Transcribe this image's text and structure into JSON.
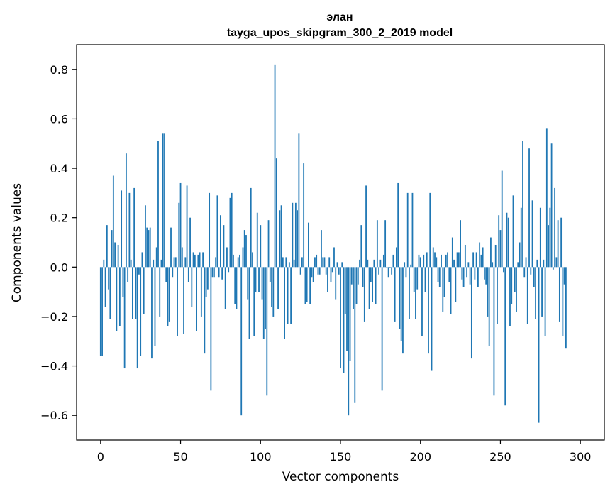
{
  "chart_data": {
    "type": "bar",
    "title": "элан",
    "subtitle": "tayga_upos_skipgram_300_2_2019 model",
    "xlabel": "Vector components",
    "ylabel": "Components values",
    "xlim": [
      -15,
      315
    ],
    "ylim": [
      -0.7,
      0.9
    ],
    "xticks": [
      0,
      50,
      100,
      150,
      200,
      250,
      300
    ],
    "xtick_labels": [
      "0",
      "50",
      "100",
      "150",
      "200",
      "250",
      "300"
    ],
    "yticks": [
      -0.6,
      -0.4,
      -0.2,
      0.0,
      0.2,
      0.4,
      0.6,
      0.8
    ],
    "ytick_labels": [
      "−0.6",
      "−0.4",
      "−0.2",
      "0.0",
      "0.2",
      "0.4",
      "0.6",
      "0.8"
    ],
    "bar_color": "#1f77b4",
    "grid": false,
    "values": [
      -0.36,
      -0.36,
      0.03,
      -0.16,
      0.17,
      -0.09,
      -0.21,
      0.15,
      0.37,
      0.1,
      -0.26,
      0.09,
      -0.24,
      0.31,
      -0.12,
      -0.41,
      0.46,
      -0.06,
      0.3,
      0.03,
      -0.21,
      0.32,
      -0.21,
      -0.41,
      -0.03,
      -0.36,
      0.06,
      -0.19,
      0.25,
      0.16,
      0.15,
      0.16,
      -0.37,
      0.03,
      -0.32,
      0.08,
      0.51,
      -0.2,
      0.03,
      0.54,
      0.54,
      -0.06,
      -0.24,
      -0.22,
      0.16,
      -0.04,
      0.04,
      0.04,
      -0.28,
      0.26,
      0.34,
      0.08,
      -0.27,
      0.04,
      0.33,
      -0.06,
      0.2,
      -0.16,
      0.06,
      0.05,
      -0.26,
      0.05,
      0.06,
      -0.2,
      0.06,
      -0.35,
      -0.12,
      -0.09,
      0.3,
      -0.5,
      -0.04,
      -0.04,
      0.04,
      0.29,
      -0.04,
      0.21,
      -0.05,
      0.17,
      -0.17,
      0.08,
      -0.02,
      0.28,
      0.3,
      0.05,
      -0.15,
      -0.17,
      0.04,
      0.05,
      -0.6,
      0.08,
      0.15,
      0.13,
      -0.13,
      -0.29,
      0.32,
      0.06,
      -0.28,
      -0.1,
      0.22,
      -0.1,
      0.17,
      -0.13,
      -0.29,
      -0.25,
      -0.52,
      0.19,
      -0.06,
      -0.16,
      -0.2,
      0.82,
      0.44,
      -0.17,
      0.23,
      0.25,
      0.04,
      -0.29,
      0.04,
      -0.23,
      0.02,
      -0.23,
      0.26,
      0.03,
      0.26,
      0.23,
      0.54,
      -0.03,
      0.04,
      0.42,
      -0.15,
      -0.14,
      0.18,
      -0.15,
      -0.04,
      -0.06,
      0.04,
      0.05,
      -0.03,
      -0.03,
      0.15,
      0.04,
      0.04,
      -0.03,
      -0.1,
      0.04,
      -0.06,
      -0.02,
      0.08,
      -0.13,
      0.02,
      -0.03,
      -0.41,
      0.02,
      -0.43,
      -0.19,
      -0.34,
      -0.6,
      -0.38,
      -0.07,
      -0.17,
      -0.55,
      -0.15,
      -0.07,
      0.03,
      0.17,
      -0.08,
      -0.22,
      0.33,
      0.03,
      -0.17,
      -0.06,
      -0.14,
      0.03,
      -0.15,
      0.19,
      -0.03,
      0.03,
      -0.5,
      0.05,
      0.19,
      0.0,
      -0.04,
      0.0,
      -0.03,
      0.05,
      -0.22,
      0.08,
      0.34,
      -0.25,
      -0.3,
      -0.35,
      0.02,
      -0.04,
      0.3,
      -0.21,
      0.01,
      0.3,
      -0.1,
      -0.21,
      -0.09,
      0.05,
      0.04,
      -0.28,
      0.05,
      -0.1,
      0.06,
      -0.35,
      0.3,
      -0.42,
      0.08,
      0.06,
      0.04,
      -0.06,
      -0.08,
      0.05,
      -0.18,
      -0.12,
      0.05,
      0.06,
      -0.06,
      -0.19,
      0.12,
      0.03,
      -0.14,
      0.06,
      0.06,
      0.19,
      -0.05,
      -0.08,
      0.09,
      -0.04,
      0.02,
      -0.07,
      -0.37,
      0.06,
      -0.05,
      0.06,
      -0.08,
      0.1,
      0.05,
      0.08,
      -0.05,
      -0.07,
      -0.2,
      -0.32,
      0.12,
      0.02,
      -0.52,
      0.09,
      -0.23,
      0.21,
      0.15,
      0.39,
      -0.02,
      -0.56,
      0.22,
      0.2,
      -0.24,
      -0.15,
      0.29,
      -0.1,
      -0.18,
      0.02,
      0.1,
      0.24,
      0.51,
      -0.04,
      0.04,
      -0.23,
      0.48,
      -0.03,
      0.27,
      -0.08,
      -0.21,
      0.03,
      -0.63,
      0.24,
      -0.2,
      0.03,
      -0.28,
      0.56,
      0.17,
      0.24,
      0.5,
      -0.01,
      0.32,
      0.04,
      0.19,
      -0.22,
      0.2,
      -0.28,
      -0.07,
      -0.33
    ]
  }
}
